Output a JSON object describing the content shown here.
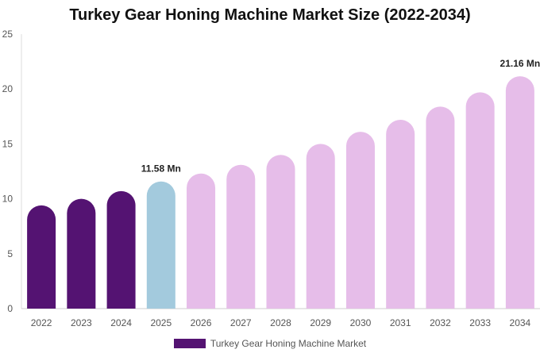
{
  "chart_data": {
    "type": "bar",
    "title": "Turkey Gear Honing Machine Market Size (2022-2034)",
    "categories": [
      "2022",
      "2023",
      "2024",
      "2025",
      "2026",
      "2027",
      "2028",
      "2029",
      "2030",
      "2031",
      "2032",
      "2033",
      "2034"
    ],
    "series": [
      {
        "name": "Turkey Gear Honing Machine Market",
        "values": [
          9.4,
          10.0,
          10.7,
          11.58,
          12.3,
          13.1,
          14.0,
          15.0,
          16.1,
          17.2,
          18.4,
          19.7,
          21.16
        ]
      }
    ],
    "annotations": [
      {
        "category": "2025",
        "text": "11.58 Mn"
      },
      {
        "category": "2034",
        "text": "21.16 Mn"
      }
    ],
    "ylim": [
      0,
      25
    ],
    "yticks": [
      0,
      5,
      10,
      15,
      20,
      25
    ],
    "grid": false,
    "legend_position": "bottom",
    "colors": {
      "historical": "#541372",
      "base_year": "#a3cadd",
      "forecast": "#e6bde9"
    },
    "color_groups": [
      "historical",
      "historical",
      "historical",
      "base_year",
      "forecast",
      "forecast",
      "forecast",
      "forecast",
      "forecast",
      "forecast",
      "forecast",
      "forecast",
      "forecast"
    ]
  }
}
